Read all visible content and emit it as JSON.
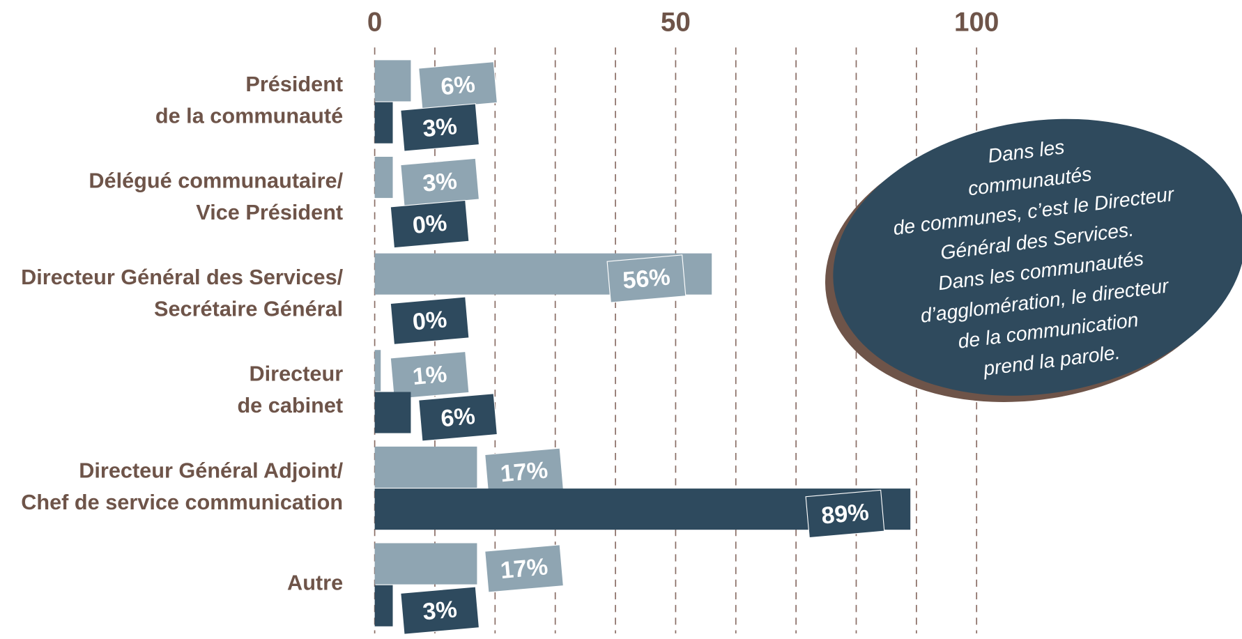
{
  "chart_data": {
    "type": "bar",
    "orientation": "horizontal",
    "categories": [
      [
        "Président",
        "de la communauté"
      ],
      [
        "Délégué communautaire/",
        "Vice Président"
      ],
      [
        "Directeur Général des Services/",
        "Secrétaire Général"
      ],
      [
        "Directeur",
        "de cabinet"
      ],
      [
        "Directeur Général Adjoint/",
        "Chef de service communication"
      ],
      [
        "Autre"
      ]
    ],
    "series": [
      {
        "color": "#8fa5b2",
        "values": [
          6,
          3,
          56,
          1,
          17,
          17
        ],
        "value_labels": [
          "6%",
          "3%",
          "56%",
          "1%",
          "17%",
          "17%"
        ]
      },
      {
        "color": "#2e4a5e",
        "values": [
          3,
          0,
          0,
          6,
          89,
          3
        ],
        "value_labels": [
          "3%",
          "0%",
          "0%",
          "6%",
          "89%",
          "3%"
        ]
      }
    ],
    "xlim": [
      0,
      100
    ],
    "xticks": [
      0,
      50,
      100
    ],
    "minor_xticks": [
      10,
      20,
      30,
      40,
      60,
      70,
      80,
      90
    ],
    "grid": true,
    "annotation": [
      "Dans les",
      "communautés",
      "de communes, c’est le Directeur",
      "Général des Services.",
      "Dans les communautés",
      "d’agglomération, le directeur",
      "de la communication",
      "prend la parole."
    ]
  }
}
